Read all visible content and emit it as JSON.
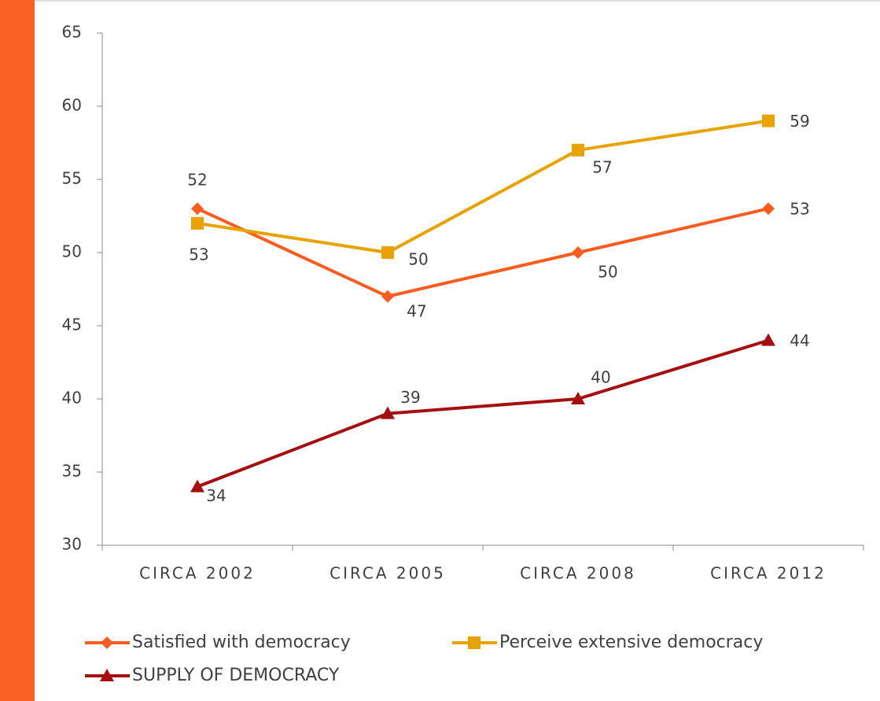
{
  "chart_data": {
    "type": "line",
    "categories": [
      "CIRCA 2002",
      "CIRCA 2005",
      "CIRCA 2008",
      "CIRCA 2012"
    ],
    "series": [
      {
        "name": "Satisfied with democracy",
        "color": "#fb5d20",
        "marker": "diamond",
        "values": [
          53,
          47,
          50,
          53
        ]
      },
      {
        "name": "Perceive extensive democracy",
        "color": "#e8a202",
        "marker": "square",
        "values": [
          52,
          50,
          57,
          59
        ]
      },
      {
        "name": "SUPPLY OF DEMOCRACY",
        "color": "#a50f0f",
        "marker": "triangle",
        "values": [
          34,
          39,
          40,
          44
        ]
      }
    ],
    "ylim": [
      30,
      65
    ],
    "yticks": [
      30,
      35,
      40,
      45,
      50,
      55,
      60,
      65
    ],
    "grid": false,
    "legend": "bottom"
  }
}
